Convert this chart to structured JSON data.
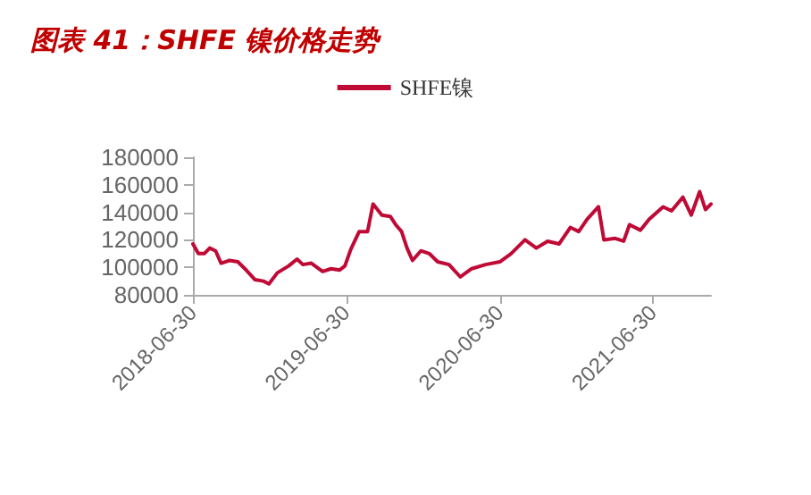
{
  "chart_data": {
    "type": "line",
    "title": "图表 41：SHFE 镍价格走势",
    "x": [
      "2018-06-30",
      "2018-07-13",
      "2018-07-27",
      "2018-08-09",
      "2018-08-23",
      "2018-09-05",
      "2018-09-25",
      "2018-10-15",
      "2018-11-04",
      "2018-11-25",
      "2018-12-15",
      "2018-12-28",
      "2019-01-17",
      "2019-02-13",
      "2019-03-05",
      "2019-03-19",
      "2019-04-08",
      "2019-05-05",
      "2019-05-25",
      "2019-06-14",
      "2019-06-27",
      "2019-07-11",
      "2019-07-31",
      "2019-08-20",
      "2019-09-02",
      "2019-09-23",
      "2019-10-13",
      "2019-10-26",
      "2019-11-09",
      "2019-11-22",
      "2019-12-05",
      "2019-12-25",
      "2020-01-14",
      "2020-02-03",
      "2020-03-01",
      "2020-03-28",
      "2020-04-24",
      "2020-05-27",
      "2020-06-30",
      "2020-07-27",
      "2020-08-29",
      "2020-09-25",
      "2020-10-22",
      "2020-11-18",
      "2020-12-15",
      "2021-01-04",
      "2021-01-24",
      "2021-02-20",
      "2021-03-05",
      "2021-04-01",
      "2021-04-21",
      "2021-05-05",
      "2021-05-31",
      "2021-06-21",
      "2021-07-24",
      "2021-08-13",
      "2021-09-09",
      "2021-09-29",
      "2021-10-19",
      "2021-11-02",
      "2021-11-15"
    ],
    "series": [
      {
        "name": "SHFE镍",
        "color": "#c00a36",
        "values": [
          117000,
          110000,
          110000,
          114000,
          112000,
          103000,
          105000,
          104000,
          98000,
          91000,
          90000,
          88000,
          96000,
          101000,
          106000,
          102000,
          103000,
          97000,
          99000,
          98000,
          101000,
          113000,
          126000,
          126000,
          146000,
          138000,
          137000,
          131000,
          126000,
          114000,
          105000,
          112000,
          110000,
          104000,
          102000,
          93000,
          99000,
          102000,
          104000,
          110000,
          120000,
          114000,
          119000,
          117000,
          129000,
          126000,
          135000,
          144000,
          120000,
          121000,
          119000,
          131000,
          127000,
          135000,
          144000,
          141000,
          151000,
          138000,
          155000,
          142000,
          146000
        ]
      }
    ],
    "xlim": [
      "2018-06-30",
      "2021-11-15"
    ],
    "xticks": [
      "2018-06-30",
      "2019-06-30",
      "2020-06-30",
      "2021-06-30"
    ],
    "ylim": [
      80000,
      180000
    ],
    "yticks": [
      80000,
      100000,
      120000,
      140000,
      160000,
      180000
    ],
    "grid": false,
    "legend": "top",
    "marker": "none",
    "line_style": "solid"
  }
}
